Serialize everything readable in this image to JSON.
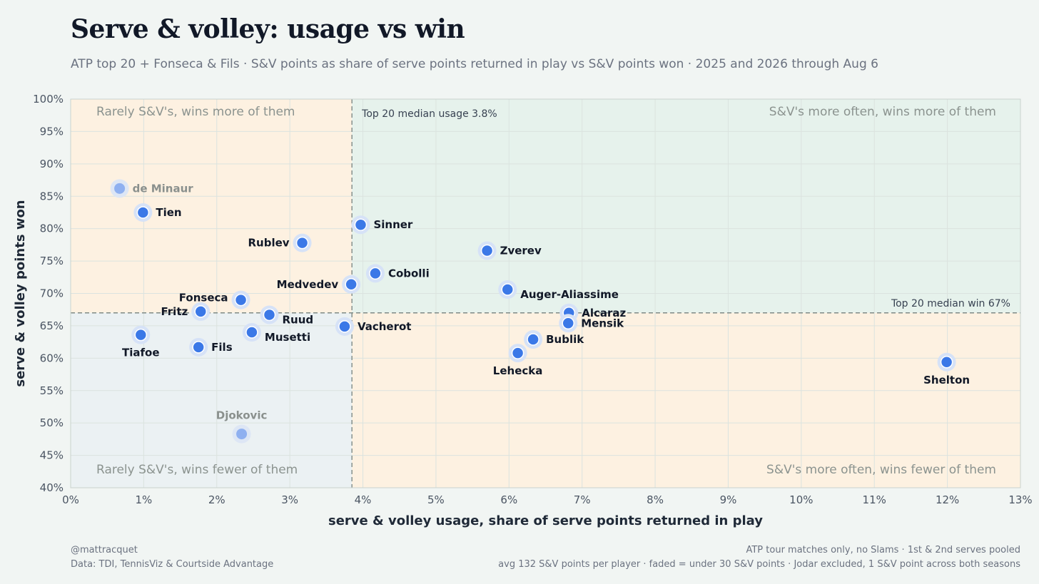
{
  "title": "Serve & volley: usage vs win",
  "subtitle": "ATP top 20 + Fonseca & Fils · S&V points as share of serve points returned in play vs S&V points won · 2025 and 2026 through Aug 6",
  "footer": {
    "left_line1": "@mattracquet",
    "left_line2": "Data: TDI, TennisViz & Courtside Advantage",
    "right_line1": "ATP tour matches only, no Slams · 1st & 2nd serves pooled",
    "right_line2": "avg 132 S&V points per player · faded = under 30 S&V points · Jodar excluded, 1 S&V point across both seasons"
  },
  "colors": {
    "point": "#3b78e7",
    "point_faded": "#8fb0f0",
    "quadrant_orange": "#fdf1e1",
    "quadrant_green": "#e6f2ec",
    "quadrant_blue": "#ebf1f3"
  },
  "chart_data": {
    "type": "scatter",
    "xlabel": "serve & volley usage, share of serve points returned in play",
    "ylabel": "serve & volley points won",
    "xlim": [
      0,
      13
    ],
    "ylim": [
      40,
      100
    ],
    "x_ticks": [
      "0%",
      "1%",
      "2%",
      "3%",
      "4%",
      "5%",
      "6%",
      "7%",
      "8%",
      "9%",
      "10%",
      "11%",
      "12%",
      "13%"
    ],
    "y_ticks": [
      "40%",
      "45%",
      "50%",
      "55%",
      "60%",
      "65%",
      "70%",
      "75%",
      "80%",
      "85%",
      "90%",
      "95%",
      "100%"
    ],
    "grid": true,
    "reference_lines": {
      "median_usage": 3.85,
      "median_usage_label": "Top 20 median usage 3.8%",
      "median_win": 67,
      "median_win_label": "Top 20 median win 67%"
    },
    "quadrant_labels": {
      "top_left": "Rarely S&V's, wins more of them",
      "top_right": "S&V's more often, wins more of them",
      "bottom_left": "Rarely S&V's, wins fewer of them",
      "bottom_right": "S&V's more often, wins fewer of them"
    },
    "points": [
      {
        "name": "de Minaur",
        "x": 0.67,
        "y": 86.2,
        "faded": true,
        "label_pos": "right"
      },
      {
        "name": "Tien",
        "x": 0.99,
        "y": 82.5,
        "faded": false,
        "label_pos": "right"
      },
      {
        "name": "Sinner",
        "x": 3.97,
        "y": 80.6,
        "faded": false,
        "label_pos": "right"
      },
      {
        "name": "Rublev",
        "x": 3.17,
        "y": 77.8,
        "faded": false,
        "label_pos": "left"
      },
      {
        "name": "Zverev",
        "x": 5.7,
        "y": 76.6,
        "faded": false,
        "label_pos": "right"
      },
      {
        "name": "Cobolli",
        "x": 4.17,
        "y": 73.1,
        "faded": false,
        "label_pos": "right"
      },
      {
        "name": "Medvedev",
        "x": 3.84,
        "y": 71.4,
        "faded": false,
        "label_pos": "left"
      },
      {
        "name": "Auger-Aliassime",
        "x": 5.98,
        "y": 70.6,
        "faded": false,
        "label_pos": "right-low"
      },
      {
        "name": "Fonseca",
        "x": 2.33,
        "y": 69.0,
        "faded": false,
        "label_pos": "left-high"
      },
      {
        "name": "Fritz",
        "x": 1.78,
        "y": 67.2,
        "faded": false,
        "label_pos": "left"
      },
      {
        "name": "Alcaraz",
        "x": 6.82,
        "y": 67.0,
        "faded": false,
        "label_pos": "right"
      },
      {
        "name": "Ruud",
        "x": 2.72,
        "y": 66.7,
        "faded": false,
        "label_pos": "right-low"
      },
      {
        "name": "Mensik",
        "x": 6.81,
        "y": 65.4,
        "faded": false,
        "label_pos": "right"
      },
      {
        "name": "Vacherot",
        "x": 3.75,
        "y": 64.9,
        "faded": false,
        "label_pos": "right"
      },
      {
        "name": "Musetti",
        "x": 2.48,
        "y": 64.0,
        "faded": false,
        "label_pos": "right-low"
      },
      {
        "name": "Tiafoe",
        "x": 0.96,
        "y": 63.6,
        "faded": false,
        "label_pos": "below"
      },
      {
        "name": "Bublik",
        "x": 6.33,
        "y": 62.9,
        "faded": false,
        "label_pos": "right"
      },
      {
        "name": "Fils",
        "x": 1.75,
        "y": 61.7,
        "faded": false,
        "label_pos": "right"
      },
      {
        "name": "Lehecka",
        "x": 6.12,
        "y": 60.8,
        "faded": false,
        "label_pos": "below"
      },
      {
        "name": "Shelton",
        "x": 11.99,
        "y": 59.4,
        "faded": false,
        "label_pos": "below"
      },
      {
        "name": "Djokovic",
        "x": 2.34,
        "y": 48.3,
        "faded": true,
        "label_pos": "above"
      }
    ]
  }
}
